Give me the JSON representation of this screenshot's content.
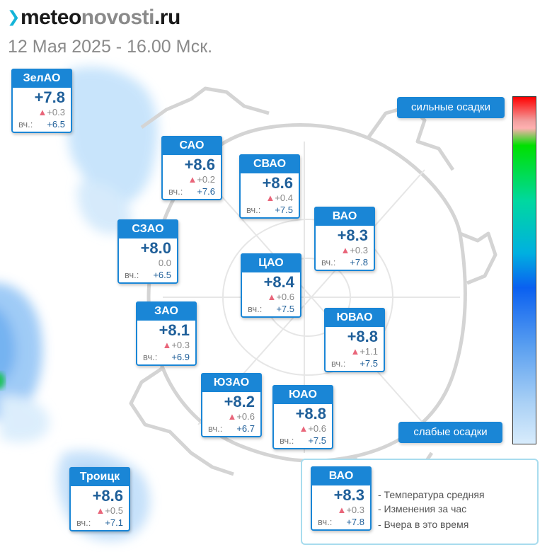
{
  "header": {
    "logo_part1": "meteo",
    "logo_part2": "novosti",
    "logo_part3": ".ru",
    "datetime": "12 Мая 2025 - 16.00 Мск."
  },
  "colors": {
    "accent": "#1a86d6",
    "temperature_text": "#1f5f99",
    "increase_marker": "#e9667a",
    "logo_mark": "#14b4d8"
  },
  "districts": [
    {
      "name": "ЗелАО",
      "temp": "+7.8",
      "change": "+0.3",
      "change_dir": "up",
      "yest_label": "вч.:",
      "yest": "+6.5"
    },
    {
      "name": "САО",
      "temp": "+8.6",
      "change": "+0.2",
      "change_dir": "up",
      "yest_label": "вч.:",
      "yest": "+7.6"
    },
    {
      "name": "СВАО",
      "temp": "+8.6",
      "change": "+0.4",
      "change_dir": "up",
      "yest_label": "вч.:",
      "yest": "+7.5"
    },
    {
      "name": "ВАО",
      "temp": "+8.3",
      "change": "+0.3",
      "change_dir": "up",
      "yest_label": "вч.:",
      "yest": "+7.8"
    },
    {
      "name": "СЗАО",
      "temp": "+8.0",
      "change": "0.0",
      "change_dir": "none",
      "yest_label": "вч.:",
      "yest": "+6.5"
    },
    {
      "name": "ЦАО",
      "temp": "+8.4",
      "change": "+0.6",
      "change_dir": "up",
      "yest_label": "вч.:",
      "yest": "+7.5"
    },
    {
      "name": "ЗАО",
      "temp": "+8.1",
      "change": "+0.3",
      "change_dir": "up",
      "yest_label": "вч.:",
      "yest": "+6.9"
    },
    {
      "name": "ЮВАО",
      "temp": "+8.8",
      "change": "+1.1",
      "change_dir": "up",
      "yest_label": "вч.:",
      "yest": "+7.5"
    },
    {
      "name": "ЮЗАО",
      "temp": "+8.2",
      "change": "+0.6",
      "change_dir": "up",
      "yest_label": "вч.:",
      "yest": "+6.7"
    },
    {
      "name": "ЮАО",
      "temp": "+8.8",
      "change": "+0.6",
      "change_dir": "up",
      "yest_label": "вч.:",
      "yest": "+7.5"
    },
    {
      "name": "Троицк",
      "temp": "+8.6",
      "change": "+0.5",
      "change_dir": "up",
      "yest_label": "вч.:",
      "yest": "+7.1"
    }
  ],
  "precip_scale": {
    "top_label": "сильные осадки",
    "bottom_label": "слабые осадки"
  },
  "legend": {
    "sample": {
      "name": "ВАО",
      "temp": "+8.3",
      "change": "+0.3",
      "yest_label": "вч.:",
      "yest": "+7.8"
    },
    "lines": [
      "- Температура средняя",
      "- Изменения за час",
      "- Вчера в это время"
    ]
  }
}
